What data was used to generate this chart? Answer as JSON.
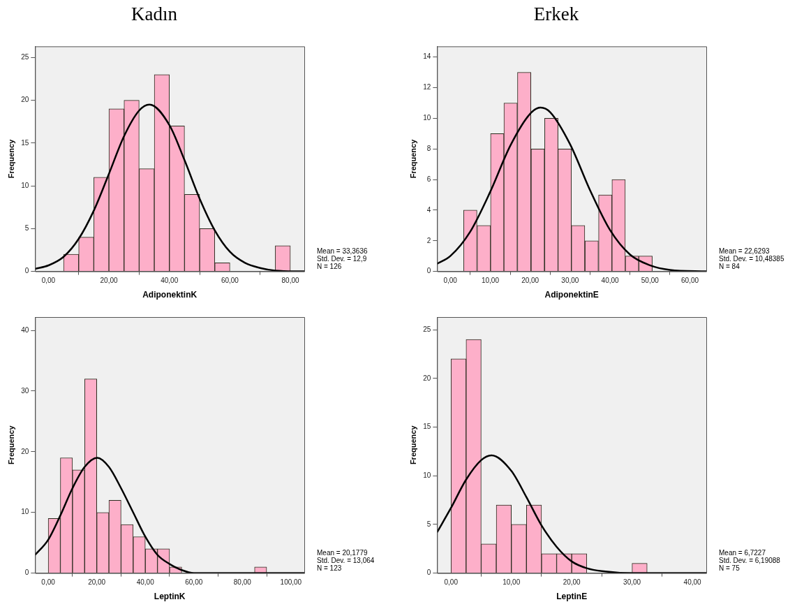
{
  "chart_data": [
    {
      "type": "histogram",
      "title": "Kadın",
      "xlabel": "AdiponektinK",
      "ylabel": "Frequency",
      "series": [
        {
          "type": "histogram",
          "color": "#fdafc9",
          "bins": [
            5,
            10,
            15,
            20,
            25,
            30,
            35,
            40,
            45,
            50,
            55,
            60,
            65,
            70,
            75,
            80
          ],
          "values": [
            2,
            4,
            11,
            19,
            20,
            12,
            23,
            17,
            9,
            5,
            1,
            0,
            0,
            0,
            3
          ]
        },
        {
          "type": "line",
          "color": "#000000",
          "x": [
            -4.4,
            0,
            5,
            10,
            15,
            20,
            25,
            30,
            33.4,
            40,
            45,
            50,
            55,
            60,
            65,
            70,
            75,
            84.6
          ],
          "values": [
            0.3,
            0.7,
            1.7,
            3.8,
            7.1,
            11.4,
            15.8,
            18.8,
            19.5,
            17.1,
            13.0,
            8.5,
            4.8,
            2.3,
            1.0,
            0.4,
            0.1,
            0
          ]
        }
      ],
      "xlim": [
        -4.4,
        84.6
      ],
      "ylim": [
        0,
        26.3
      ],
      "xticks": [
        {
          "value": 0,
          "label": "0,00"
        },
        {
          "value": 20,
          "label": "20,00"
        },
        {
          "value": 40,
          "label": "40,00"
        },
        {
          "value": 60,
          "label": "60,00"
        },
        {
          "value": 80,
          "label": "80,00"
        }
      ],
      "yticks": [
        0,
        5,
        10,
        15,
        20,
        25
      ],
      "annotations": [
        "Mean = 33,3636",
        "Std. Dev. = 12,9",
        "N = 126"
      ]
    },
    {
      "type": "histogram",
      "title": "Erkek",
      "xlabel": "AdiponektinE",
      "ylabel": "Frequency",
      "series": [
        {
          "type": "histogram",
          "color": "#fdafc9",
          "bins": [
            3.3,
            6.7,
            10.1,
            13.4,
            16.8,
            20.2,
            23.6,
            27.0,
            30.3,
            33.7,
            37.1,
            40.5,
            43.8,
            47.2,
            50.6
          ],
          "values": [
            4,
            3,
            9,
            11,
            13,
            8,
            10,
            8,
            3,
            2,
            5,
            6,
            1,
            1
          ]
        },
        {
          "type": "line",
          "color": "#000000",
          "x": [
            -3.3,
            0,
            5,
            10,
            15,
            20,
            22.6,
            25,
            30,
            35,
            40,
            45,
            50,
            55,
            64.1
          ],
          "values": [
            0.5,
            1.0,
            2.6,
            5.2,
            8.2,
            10.3,
            10.7,
            10.4,
            8.3,
            5.3,
            2.7,
            1.1,
            0.4,
            0.1,
            0
          ]
        }
      ],
      "xlim": [
        -3.3,
        64.1
      ],
      "ylim": [
        0,
        14.7
      ],
      "xticks": [
        {
          "value": 0,
          "label": "0,00"
        },
        {
          "value": 10,
          "label": "10,00"
        },
        {
          "value": 20,
          "label": "20,00"
        },
        {
          "value": 30,
          "label": "30,00"
        },
        {
          "value": 40,
          "label": "40,00"
        },
        {
          "value": 50,
          "label": "50,00"
        },
        {
          "value": 60,
          "label": "60,00"
        }
      ],
      "yticks": [
        0,
        2,
        4,
        6,
        8,
        10,
        12,
        14
      ],
      "annotations": [
        "Mean = 22,6293",
        "Std. Dev. = 10,48385",
        "N = 84"
      ]
    },
    {
      "type": "histogram",
      "xlabel": "LeptinK",
      "ylabel": "Frequency",
      "series": [
        {
          "type": "histogram",
          "color": "#fdafc9",
          "bins": [
            0,
            5,
            10,
            15,
            20,
            25,
            30,
            35,
            40,
            45,
            50,
            55,
            60,
            65,
            70,
            75,
            80,
            85,
            90
          ],
          "values": [
            9,
            19,
            17,
            32,
            10,
            12,
            8,
            6,
            4,
            4,
            1,
            0,
            0,
            0,
            0,
            0,
            0,
            1
          ]
        },
        {
          "type": "line",
          "color": "#000000",
          "x": [
            -5.4,
            0,
            5,
            10,
            15,
            20.2,
            25,
            30,
            35,
            40,
            45,
            50,
            55,
            60,
            70,
            105.5
          ],
          "values": [
            3,
            5.5,
            9.5,
            14,
            17.5,
            19,
            17.5,
            14,
            10,
            6,
            3,
            1.5,
            0.5,
            0,
            0,
            0
          ]
        }
      ],
      "xlim": [
        -5.4,
        105.5
      ],
      "ylim": [
        0,
        42.2
      ],
      "xticks": [
        {
          "value": 0,
          "label": "0,00"
        },
        {
          "value": 20,
          "label": "20,00"
        },
        {
          "value": 40,
          "label": "40,00"
        },
        {
          "value": 60,
          "label": "60,00"
        },
        {
          "value": 80,
          "label": "80,00"
        },
        {
          "value": 100,
          "label": "100,00"
        }
      ],
      "yticks": [
        0,
        10,
        20,
        30,
        40
      ],
      "annotations": [
        "Mean = 20,1779",
        "Std. Dev. = 13,064",
        "N = 123"
      ]
    },
    {
      "type": "histogram",
      "xlabel": "LeptinE",
      "ylabel": "Frequency",
      "series": [
        {
          "type": "histogram",
          "color": "#fdafc9",
          "bins": [
            0,
            2.5,
            5,
            7.5,
            10,
            12.5,
            15,
            17.5,
            20,
            22.5,
            25,
            27.5,
            30,
            32.5
          ],
          "values": [
            22,
            24,
            3,
            7,
            5,
            7,
            2,
            2,
            2,
            0,
            0,
            0,
            1
          ]
        },
        {
          "type": "line",
          "color": "#000000",
          "x": [
            -2.3,
            0,
            2.5,
            5,
            6.7,
            10,
            12.5,
            15,
            17.5,
            20,
            22.5,
            25,
            30,
            42.3
          ],
          "values": [
            4.2,
            6.7,
            9.6,
            11.6,
            12.1,
            10.5,
            7.8,
            4.9,
            2.7,
            1.2,
            0.5,
            0.2,
            0,
            0
          ]
        }
      ],
      "xlim": [
        -2.3,
        42.3
      ],
      "ylim": [
        0,
        26.3
      ],
      "xticks": [
        {
          "value": 0,
          "label": "0,00"
        },
        {
          "value": 10,
          "label": "10,00"
        },
        {
          "value": 20,
          "label": "20,00"
        },
        {
          "value": 30,
          "label": "30,00"
        },
        {
          "value": 40,
          "label": "40,00"
        }
      ],
      "yticks": [
        0,
        5,
        10,
        15,
        20,
        25
      ],
      "annotations": [
        "Mean = 6,7227",
        "Std. Dev. = 6,19088",
        "N = 75"
      ]
    }
  ]
}
